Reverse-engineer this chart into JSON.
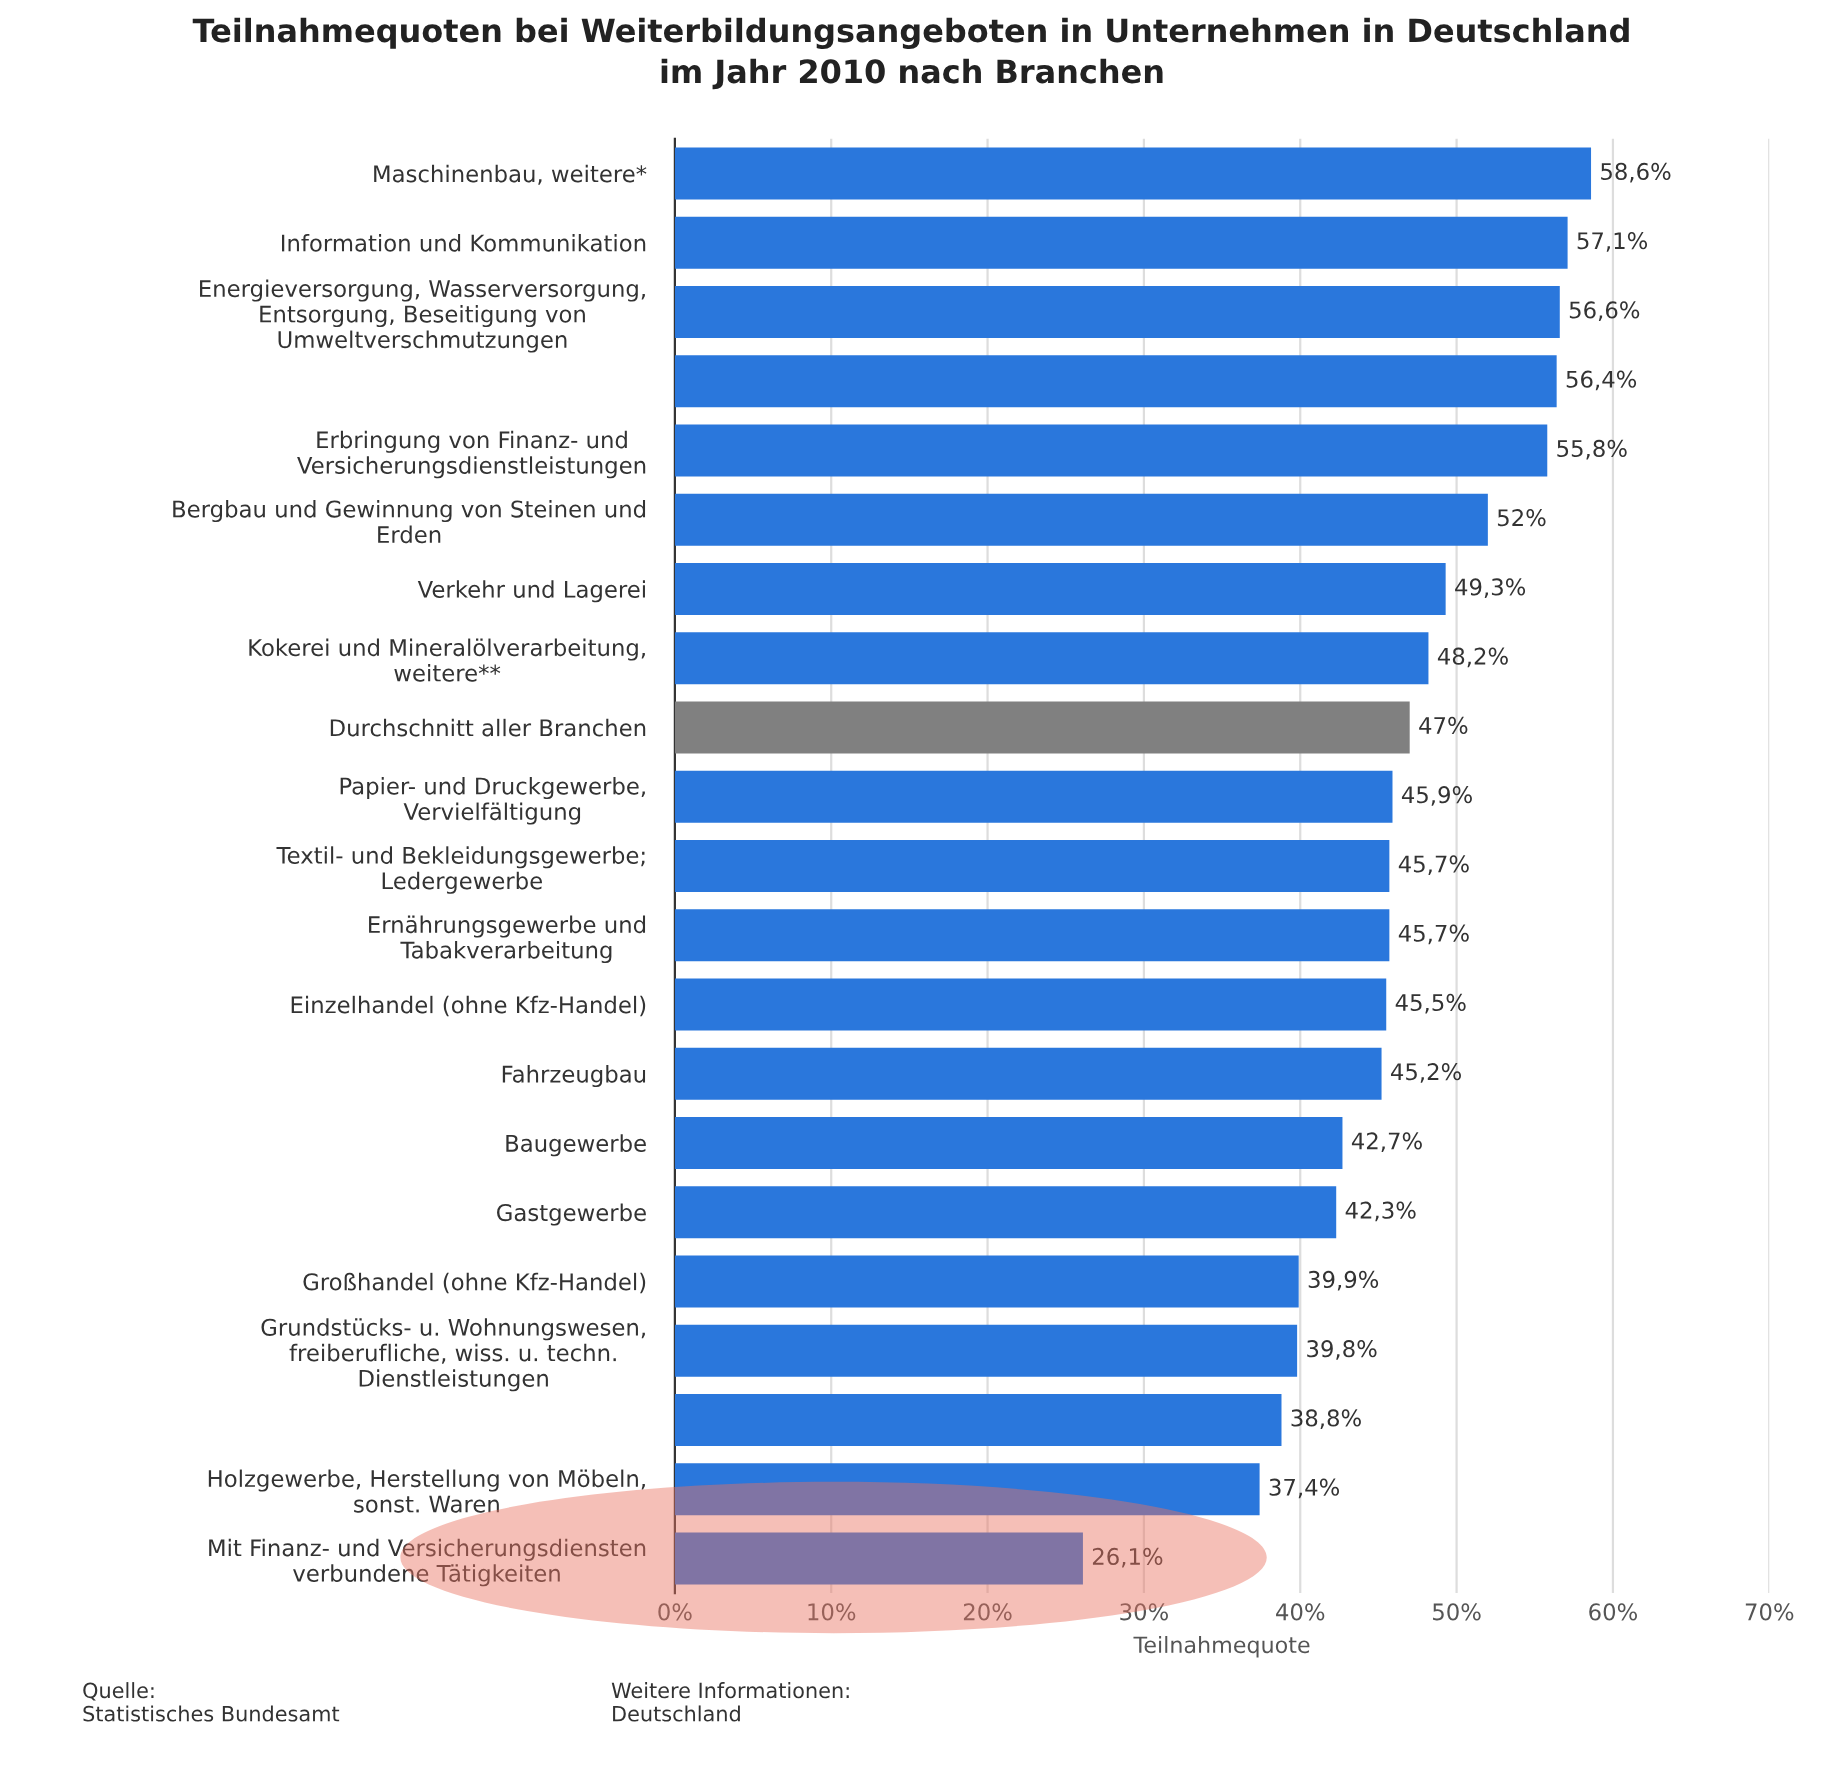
{
  "chart_data": {
    "type": "bar",
    "orientation": "horizontal",
    "title": "Teilnahmequoten bei Weiterbildungsangeboten in Unternehmen in Deutschland\nim Jahr 2010 nach Branchen",
    "xlabel": "Teilnahmequote",
    "categories": [
      "Maschinenbau, weitere*",
      "Information und Kommunikation",
      "Energieversorgung, Wasserversorgung,\nEntsorgung, Beseitigung von\nUmweltverschmutzungen",
      null,
      "Erbringung von Finanz- und\nVersicherungsdienstleistungen",
      "Bergbau und Gewinnung von Steinen und\nErden",
      "Verkehr und Lagerei",
      "Kokerei und Mineralölverarbeitung,\nweitere**",
      "Durchschnitt aller Branchen",
      "Papier- und Druckgewerbe,\nVervielfältigung",
      "Textil- und Bekleidungsgewerbe;\nLedergewerbe",
      "Ernährungsgewerbe und\nTabakverarbeitung",
      "Einzelhandel (ohne Kfz-Handel)",
      "Fahrzeugbau",
      "Baugewerbe",
      "Gastgewerbe",
      "Großhandel (ohne Kfz-Handel)",
      "Grundstücks- u. Wohnungswesen,\nfreiberufliche, wiss. u. techn.\nDienstleistungen",
      null,
      "Holzgewerbe, Herstellung von Möbeln,\nsonst. Waren",
      "Mit Finanz- und Versicherungsdiensten\nverbundene Tätigkeiten"
    ],
    "values": [
      58.6,
      57.1,
      56.6,
      56.4,
      55.8,
      52,
      49.3,
      48.2,
      47,
      45.9,
      45.7,
      45.7,
      45.5,
      45.2,
      42.7,
      42.3,
      39.9,
      39.8,
      38.8,
      37.4,
      26.1
    ],
    "value_labels": [
      "58,6%",
      "57,1%",
      "56,6%",
      "56,4%",
      "55,8%",
      "52%",
      "49,3%",
      "48,2%",
      "47%",
      "45,9%",
      "45,7%",
      "45,7%",
      "45,5%",
      "45,2%",
      "42,7%",
      "42,3%",
      "39,9%",
      "39,8%",
      "38,8%",
      "37,4%",
      "26,1%"
    ],
    "colors": [
      "#2a77dc",
      "#2a77dc",
      "#2a77dc",
      "#2a77dc",
      "#2a77dc",
      "#2a77dc",
      "#2a77dc",
      "#2a77dc",
      "#808080",
      "#2a77dc",
      "#2a77dc",
      "#2a77dc",
      "#2a77dc",
      "#2a77dc",
      "#2a77dc",
      "#2a77dc",
      "#2a77dc",
      "#2a77dc",
      "#2a77dc",
      "#2a77dc",
      "#2a77dc"
    ],
    "xlim": [
      0,
      70
    ],
    "xticks": [
      {
        "value": 0,
        "label": "0%"
      },
      {
        "value": 10,
        "label": "10%"
      },
      {
        "value": 20,
        "label": "20%"
      },
      {
        "value": 30,
        "label": "30%"
      },
      {
        "value": 40,
        "label": "40%"
      },
      {
        "value": 50,
        "label": "50%"
      },
      {
        "value": 60,
        "label": "60%"
      },
      {
        "value": 70,
        "label": "70%"
      }
    ],
    "grid": "x",
    "legend": false,
    "annotations": [
      "Quelle:\nStatistisches Bundesamt",
      "Weitere Informationen:\nDeutschland"
    ]
  }
}
